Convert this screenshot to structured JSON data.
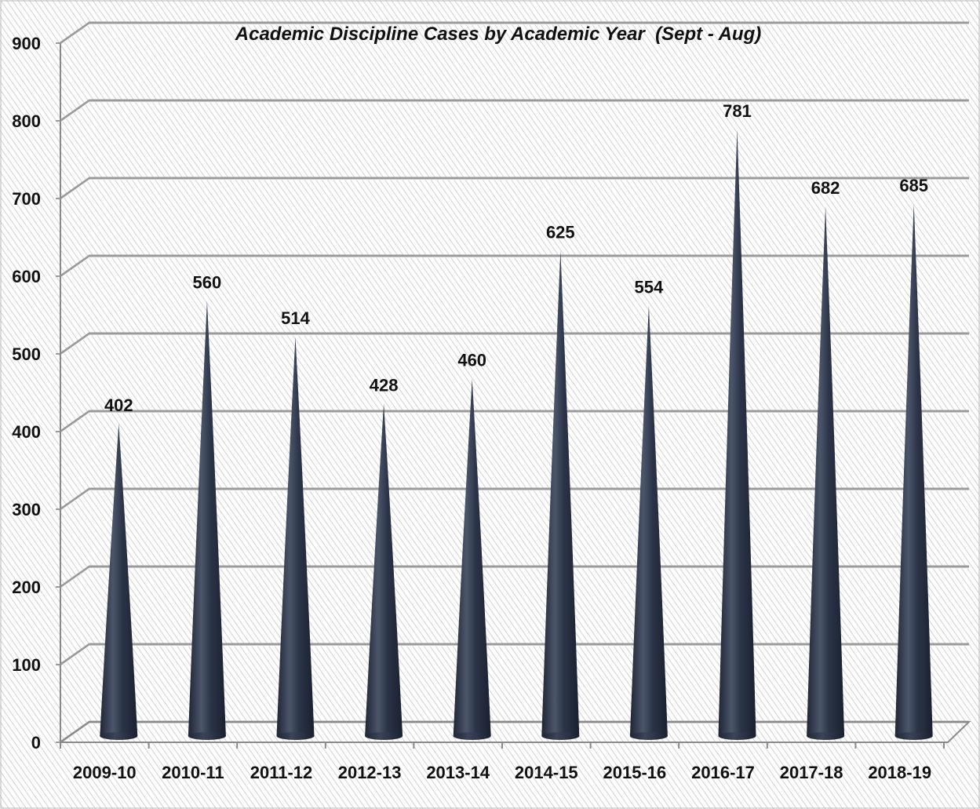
{
  "chart_data": {
    "type": "bar",
    "title": "Academic Discipline Cases by Academic Year  (Sept - Aug)",
    "xlabel": "",
    "ylabel": "",
    "categories": [
      "2009-10",
      "2010-11",
      "2011-12",
      "2012-13",
      "2013-14",
      "2014-15",
      "2015-16",
      "2016-17",
      "2017-18",
      "2018-19"
    ],
    "values": [
      402,
      560,
      514,
      428,
      460,
      625,
      554,
      781,
      682,
      685
    ],
    "ylim": [
      0,
      900
    ],
    "yticks": [
      0,
      100,
      200,
      300,
      400,
      500,
      600,
      700,
      800,
      900
    ],
    "yticks_labels": [
      "0",
      "100",
      "200",
      "300",
      "400",
      "500",
      "600",
      "700",
      "800",
      "900"
    ],
    "value_labels": [
      "402",
      "560",
      "514",
      "428",
      "460",
      "625",
      "554",
      "781",
      "682",
      "685"
    ],
    "grid": true,
    "legend": "none",
    "bar_shape": "cone",
    "colors": {
      "bar": "#2b3447",
      "bar_highlight": "#5a6478",
      "grid": "#9a9a9a",
      "background_hatch": "#d4d4d4",
      "text": "#111111"
    }
  }
}
